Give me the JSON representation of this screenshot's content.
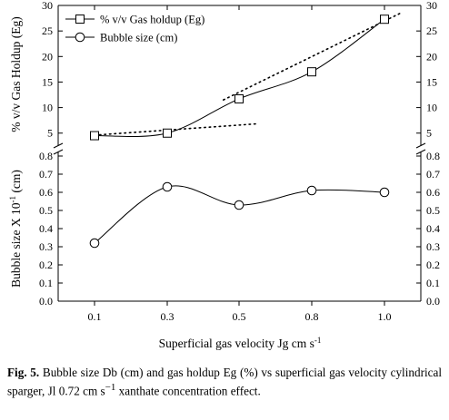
{
  "chart_data": {
    "type": "line",
    "categories": [
      "0.1",
      "0.3",
      "0.5",
      "0.8",
      "1.0"
    ],
    "xlabel": "Superficial  gas velocity Jg cm s",
    "xlabel_sup": "-1",
    "panels": [
      {
        "id": "top",
        "ylabel": "% v/v Gas Holdup (Eg)",
        "ylim": [
          3,
          30
        ],
        "ticks": [
          5,
          10,
          15,
          20,
          25,
          30
        ],
        "series": [
          {
            "name": "% v/v Gas holdup (Eg)",
            "marker": "square",
            "values": [
              4.5,
              5.0,
              11.7,
              17.0,
              27.3
            ]
          }
        ],
        "dotted_lines": [
          {
            "from": [
              0.1,
              4.6
            ],
            "to": [
              0.6,
              6.8
            ]
          },
          {
            "from": [
              0.5,
              11.5
            ],
            "to": [
              1.05,
              28.5
            ]
          }
        ]
      },
      {
        "id": "bottom",
        "ylabel": "Bubble size X 10",
        "ylabel_sup": "-1",
        "ylabel_tail": " (cm)",
        "ylim": [
          0.0,
          0.8
        ],
        "ticks": [
          0.0,
          0.1,
          0.2,
          0.3,
          0.4,
          0.5,
          0.6,
          0.7,
          0.8
        ],
        "series": [
          {
            "name": "Bubble size (cm)",
            "marker": "circle",
            "values": [
              0.32,
              0.63,
              0.53,
              0.61,
              0.6
            ]
          }
        ]
      }
    ],
    "legend_position": "top-left",
    "grid": false
  },
  "caption": {
    "label": "Fig. 5.",
    "text_a": " Bubble size Db (cm) and gas holdup Eg (%) vs superficial gas velocity cylindrical sparger, Jl 0.72 cm s",
    "sup": "−1",
    "text_b": " xanthate concentration effect."
  },
  "colors": {
    "line": "#000000",
    "background": "#ffffff"
  }
}
